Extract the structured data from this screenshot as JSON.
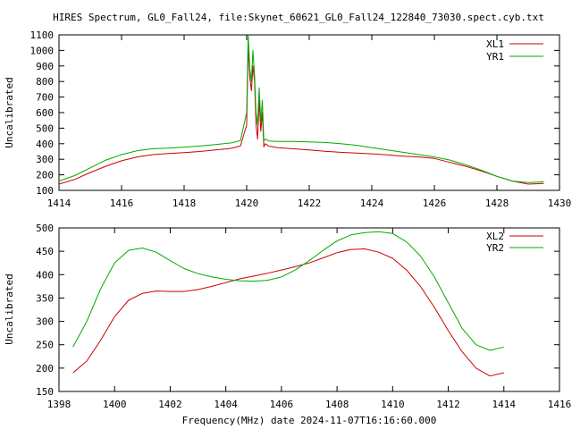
{
  "chart_data": [
    {
      "type": "line",
      "title": "HIRES Spectrum, GL0_Fall24, file:Skynet_60621_GL0_Fall24_122840_73030.spect.cyb.txt",
      "ylabel": "Uncalibrated",
      "xlabel": "",
      "xlim": [
        1414,
        1430
      ],
      "ylim": [
        100,
        1100
      ],
      "xticks": [
        "1414",
        "1416",
        "1418",
        "1420",
        "1422",
        "1424",
        "1426",
        "1428",
        "1430"
      ],
      "yticks": [
        "100",
        "200",
        "300",
        "400",
        "500",
        "600",
        "700",
        "800",
        "900",
        "1000",
        "1100"
      ],
      "legend_position": "top-right",
      "series": [
        {
          "name": "XL1",
          "color": "#cc0000",
          "x": [
            1414.0,
            1414.5,
            1415.0,
            1415.5,
            1416.0,
            1416.5,
            1417.0,
            1417.5,
            1418.0,
            1418.5,
            1419.0,
            1419.5,
            1419.8,
            1420.0,
            1420.05,
            1420.1,
            1420.15,
            1420.2,
            1420.25,
            1420.3,
            1420.35,
            1420.4,
            1420.45,
            1420.5,
            1420.55,
            1420.6,
            1420.7,
            1421.0,
            1421.5,
            1422.0,
            1422.5,
            1423.0,
            1423.5,
            1424.0,
            1424.5,
            1425.0,
            1425.5,
            1426.0,
            1426.5,
            1427.0,
            1427.5,
            1428.0,
            1428.5,
            1429.0,
            1429.5
          ],
          "y": [
            140,
            170,
            215,
            255,
            290,
            315,
            330,
            337,
            343,
            350,
            360,
            370,
            385,
            520,
            1030,
            830,
            740,
            900,
            800,
            520,
            430,
            680,
            480,
            600,
            380,
            400,
            385,
            375,
            367,
            360,
            352,
            345,
            340,
            335,
            328,
            320,
            315,
            305,
            280,
            255,
            225,
            190,
            160,
            140,
            145
          ]
        },
        {
          "name": "YR1",
          "color": "#00aa00",
          "x": [
            1414.0,
            1414.5,
            1415.0,
            1415.5,
            1416.0,
            1416.5,
            1417.0,
            1417.5,
            1418.0,
            1418.5,
            1419.0,
            1419.5,
            1419.8,
            1420.0,
            1420.05,
            1420.1,
            1420.15,
            1420.2,
            1420.25,
            1420.3,
            1420.35,
            1420.4,
            1420.45,
            1420.5,
            1420.55,
            1420.6,
            1420.7,
            1421.0,
            1421.5,
            1422.0,
            1422.5,
            1423.0,
            1423.5,
            1424.0,
            1424.5,
            1425.0,
            1425.5,
            1426.0,
            1426.5,
            1427.0,
            1427.5,
            1428.0,
            1428.5,
            1429.0,
            1429.5
          ],
          "y": [
            160,
            195,
            245,
            295,
            330,
            355,
            368,
            372,
            378,
            385,
            395,
            405,
            420,
            600,
            1100,
            880,
            800,
            1000,
            840,
            600,
            520,
            760,
            540,
            680,
            420,
            430,
            418,
            415,
            415,
            412,
            408,
            400,
            390,
            375,
            360,
            345,
            330,
            315,
            295,
            265,
            230,
            190,
            160,
            150,
            155
          ]
        }
      ]
    },
    {
      "type": "line",
      "title": "",
      "ylabel": "Uncalibrated",
      "xlabel": "Frequency(MHz) date 2024-11-07T16:16:60.000",
      "xlim": [
        1398,
        1416
      ],
      "ylim": [
        150,
        500
      ],
      "xticks": [
        "1398",
        "1400",
        "1402",
        "1404",
        "1406",
        "1408",
        "1410",
        "1412",
        "1414",
        "1416"
      ],
      "yticks": [
        "150",
        "200",
        "250",
        "300",
        "350",
        "400",
        "450",
        "500"
      ],
      "legend_position": "top-right",
      "series": [
        {
          "name": "XL2",
          "color": "#cc0000",
          "x": [
            1398.5,
            1399.0,
            1399.5,
            1400.0,
            1400.5,
            1401.0,
            1401.5,
            1402.0,
            1402.5,
            1403.0,
            1403.5,
            1404.0,
            1404.5,
            1405.0,
            1405.5,
            1406.0,
            1406.5,
            1407.0,
            1407.5,
            1408.0,
            1408.5,
            1409.0,
            1409.5,
            1410.0,
            1410.5,
            1411.0,
            1411.5,
            1412.0,
            1412.5,
            1413.0,
            1413.5,
            1414.0
          ],
          "y": [
            190,
            215,
            260,
            310,
            345,
            360,
            365,
            364,
            364,
            368,
            375,
            383,
            391,
            397,
            403,
            410,
            417,
            425,
            436,
            447,
            454,
            455,
            448,
            435,
            410,
            375,
            330,
            280,
            235,
            200,
            183,
            190
          ]
        },
        {
          "name": "YR2",
          "color": "#00aa00",
          "x": [
            1398.5,
            1399.0,
            1399.5,
            1400.0,
            1400.5,
            1401.0,
            1401.5,
            1402.0,
            1402.5,
            1403.0,
            1403.5,
            1404.0,
            1404.5,
            1405.0,
            1405.5,
            1406.0,
            1406.5,
            1407.0,
            1407.5,
            1408.0,
            1408.5,
            1409.0,
            1409.5,
            1410.0,
            1410.5,
            1411.0,
            1411.5,
            1412.0,
            1412.5,
            1413.0,
            1413.5,
            1414.0
          ],
          "y": [
            245,
            300,
            370,
            425,
            452,
            457,
            448,
            430,
            413,
            402,
            395,
            390,
            387,
            386,
            388,
            395,
            410,
            430,
            452,
            472,
            485,
            490,
            492,
            488,
            470,
            440,
            395,
            340,
            285,
            250,
            238,
            245
          ]
        }
      ]
    }
  ]
}
